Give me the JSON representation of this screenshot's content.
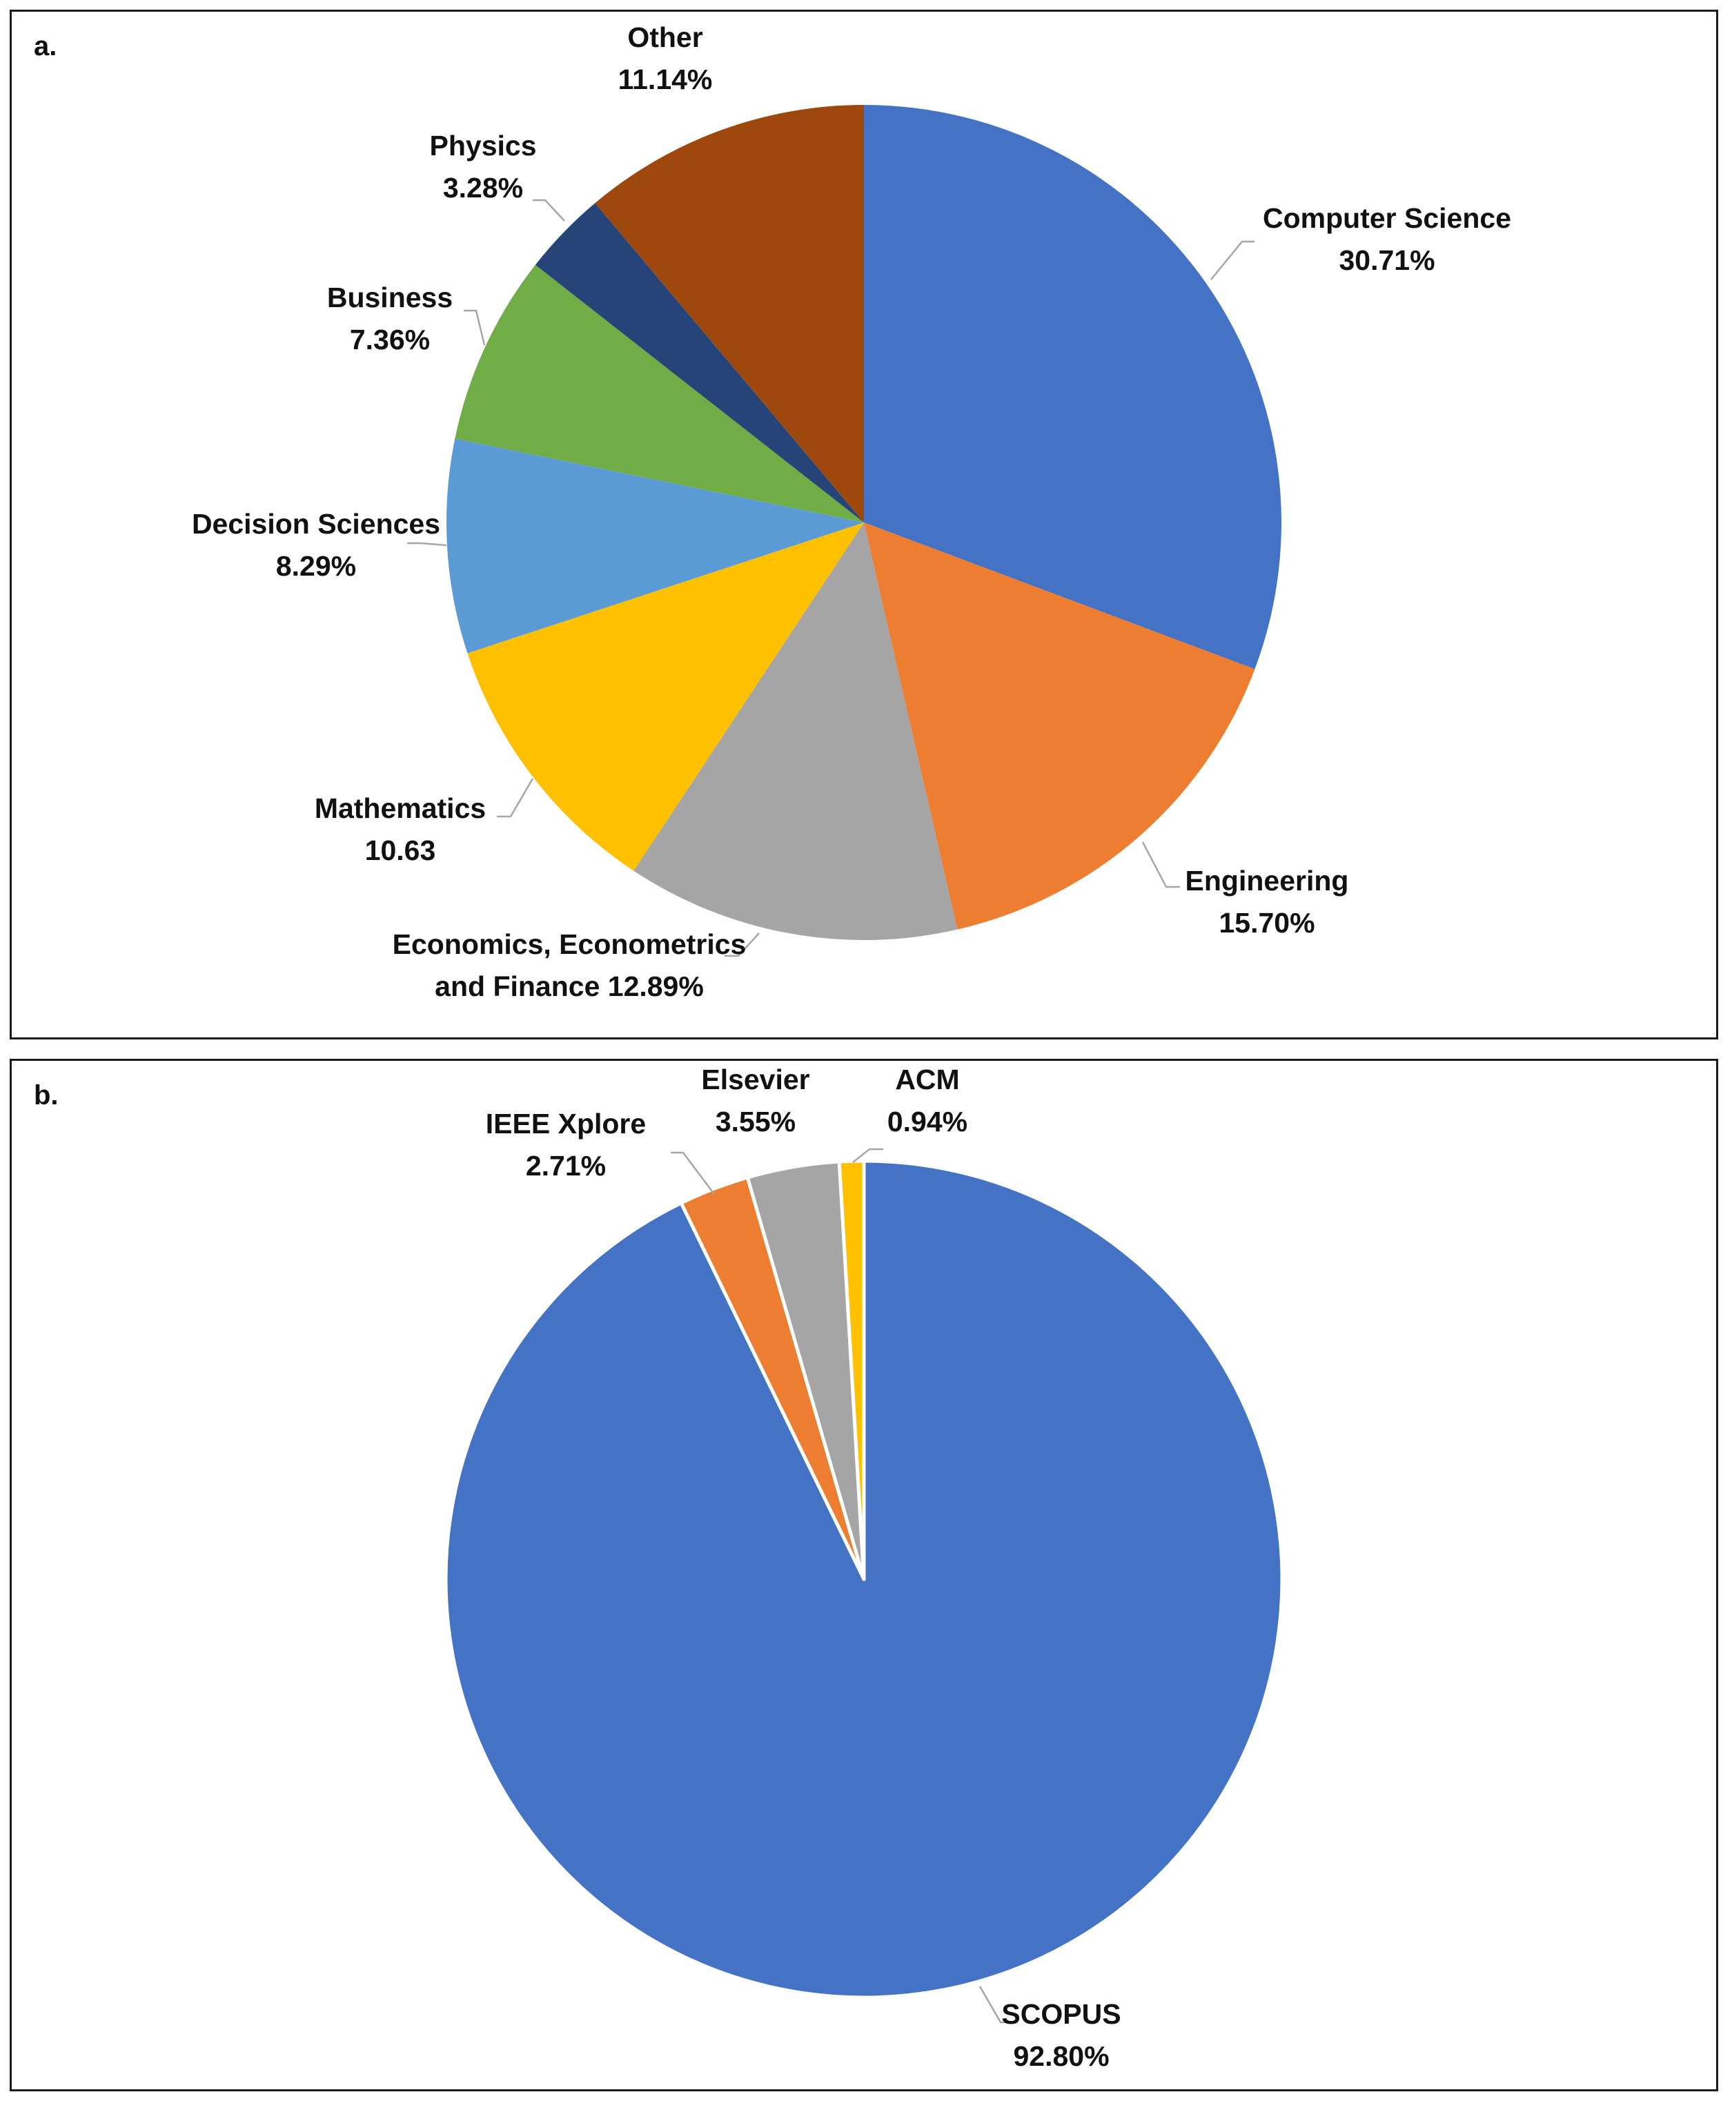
{
  "chart_data": [
    {
      "type": "pie",
      "panel_label": "a.",
      "title": "",
      "slices": [
        {
          "name": "Computer Science",
          "value": 30.71,
          "label_lines": [
            "Computer Science",
            "30.71%"
          ],
          "color": "#4472C4"
        },
        {
          "name": "Engineering",
          "value": 15.7,
          "label_lines": [
            "Engineering",
            "15.70%"
          ],
          "color": "#ED7D31"
        },
        {
          "name": "Economics, Econometrics and Finance",
          "value": 12.89,
          "label_lines": [
            "Economics, Econometrics",
            "and Finance  12.89%"
          ],
          "color": "#A5A5A5"
        },
        {
          "name": "Mathematics",
          "value": 10.63,
          "label_lines": [
            "Mathematics",
            "10.63"
          ],
          "color": "#FFC000"
        },
        {
          "name": "Decision Sciences",
          "value": 8.29,
          "label_lines": [
            "Decision Sciences",
            "8.29%"
          ],
          "color": "#5B9BD5"
        },
        {
          "name": "Business",
          "value": 7.36,
          "label_lines": [
            "Business",
            "7.36%"
          ],
          "color": "#70AD47"
        },
        {
          "name": "Physics",
          "value": 3.28,
          "label_lines": [
            "Physics",
            "3.28%"
          ],
          "color": "#264478"
        },
        {
          "name": "Other",
          "value": 11.14,
          "label_lines": [
            "Other",
            "11.14%"
          ],
          "color": "#9E480E"
        }
      ]
    },
    {
      "type": "pie",
      "panel_label": "b.",
      "title": "",
      "slices": [
        {
          "name": "SCOPUS",
          "value": 92.8,
          "label_lines": [
            "SCOPUS",
            "92.80%"
          ],
          "color": "#4472C4"
        },
        {
          "name": "IEEE Xplore",
          "value": 2.71,
          "label_lines": [
            "IEEE Xplore",
            "2.71%"
          ],
          "color": "#ED7D31"
        },
        {
          "name": "Elsevier",
          "value": 3.55,
          "label_lines": [
            "Elsevier",
            "3.55%"
          ],
          "color": "#A5A5A5"
        },
        {
          "name": "ACM",
          "value": 0.94,
          "label_lines": [
            "ACM",
            "0.94%"
          ],
          "color": "#FFC000"
        }
      ]
    }
  ]
}
